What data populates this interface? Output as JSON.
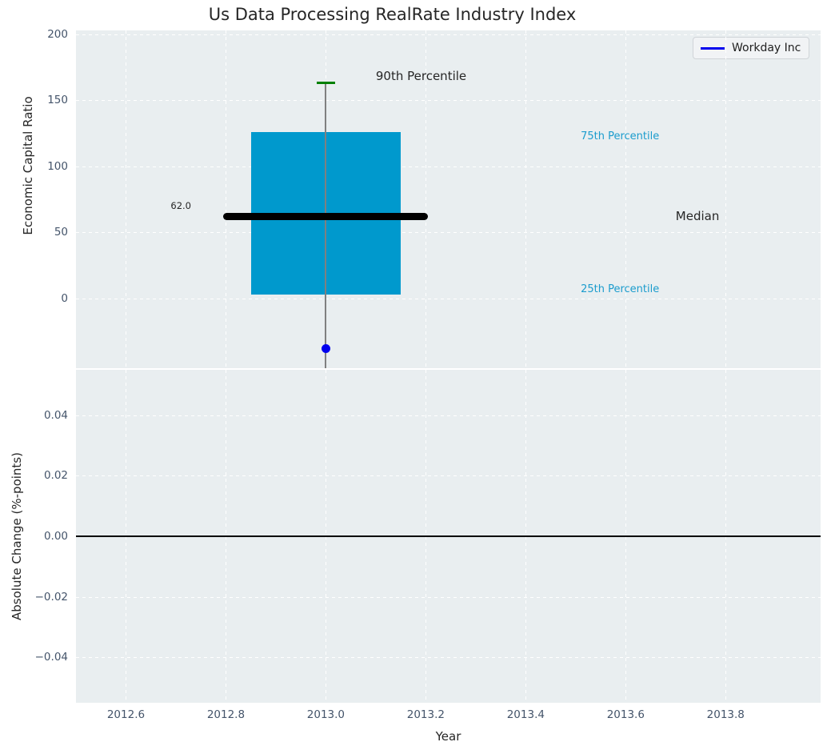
{
  "title": "Us Data Processing RealRate Industry Index",
  "legend": {
    "label": "Workday Inc"
  },
  "colors": {
    "figure_bg": "#ffffff",
    "axes_bg": "#e9eef0",
    "grid": "#ffffff",
    "box_fill": "#0099cd",
    "median_line": "#000000",
    "whisker": "#808080",
    "whisker_cap": "#008000",
    "series_blue": "#0000ee",
    "cyan_label": "#1b9ccd",
    "tick_label": "#44546a",
    "text_dark": "#262626",
    "zero_line": "#000000",
    "legend_bg": "#f1f3f5",
    "legend_border": "#d0d4d8"
  },
  "chart_data": [
    {
      "type": "boxplot",
      "title": "Us Data Processing RealRate Industry Index",
      "ylabel": "Economic Capital Ratio",
      "xlabel": "Year",
      "xlim": [
        2012.5,
        2013.99
      ],
      "ylim": [
        -53,
        203
      ],
      "grid": true,
      "legend_position": "upper right",
      "yticks": [
        {
          "v": 0,
          "label": "0"
        },
        {
          "v": 50,
          "label": "50"
        },
        {
          "v": 100,
          "label": "100"
        },
        {
          "v": 150,
          "label": "150"
        },
        {
          "v": 200,
          "label": "200"
        }
      ],
      "box": {
        "x": 2013.0,
        "width_years": 0.3,
        "p25": 3,
        "median": 62.0,
        "p75": 126,
        "p90": 163,
        "whisker_low_clipped_below_axis": true,
        "median_line_halfwidth_years": 0.205,
        "cap_halfwidth_years": 0.018,
        "median_value_label": "62.0"
      },
      "series": [
        {
          "name": "Workday Inc",
          "type": "scatter",
          "points": [
            {
              "x": 2013.0,
              "y": -38
            }
          ]
        }
      ],
      "annotations": [
        {
          "text": "90th Percentile",
          "x": 2013.1,
          "y": 168,
          "style": "dark",
          "size": 15,
          "anchor": "left"
        },
        {
          "text": "75th Percentile",
          "x": 2013.51,
          "y": 122,
          "style": "cyan",
          "size": 13,
          "anchor": "left"
        },
        {
          "text": "Median",
          "x": 2013.7,
          "y": 62,
          "style": "dark",
          "size": 15,
          "anchor": "left"
        },
        {
          "text": "25th Percentile",
          "x": 2013.51,
          "y": 6,
          "style": "cyan",
          "size": 13,
          "anchor": "left"
        },
        {
          "text": "62.0",
          "x": 2012.71,
          "y": 69,
          "style": "dark",
          "size": 11.5,
          "anchor": "center"
        }
      ]
    },
    {
      "type": "line",
      "ylabel": "Absolute Change (%-points)",
      "xlabel": "Year",
      "xlim": [
        2012.5,
        2013.99
      ],
      "ylim": [
        -0.055,
        0.055
      ],
      "grid": true,
      "zero_line": 0.0,
      "yticks": [
        {
          "v": 0.04,
          "label": "0.04"
        },
        {
          "v": 0.02,
          "label": "0.02"
        },
        {
          "v": 0.0,
          "label": "0.00"
        },
        {
          "v": -0.02,
          "label": "−0.02"
        },
        {
          "v": -0.04,
          "label": "−0.04"
        }
      ],
      "xticks": [
        {
          "v": 2012.6,
          "label": "2012.6"
        },
        {
          "v": 2012.8,
          "label": "2012.8"
        },
        {
          "v": 2013.0,
          "label": "2013.0"
        },
        {
          "v": 2013.2,
          "label": "2013.2"
        },
        {
          "v": 2013.4,
          "label": "2013.4"
        },
        {
          "v": 2013.6,
          "label": "2013.6"
        },
        {
          "v": 2013.8,
          "label": "2013.8"
        }
      ],
      "series": []
    }
  ]
}
